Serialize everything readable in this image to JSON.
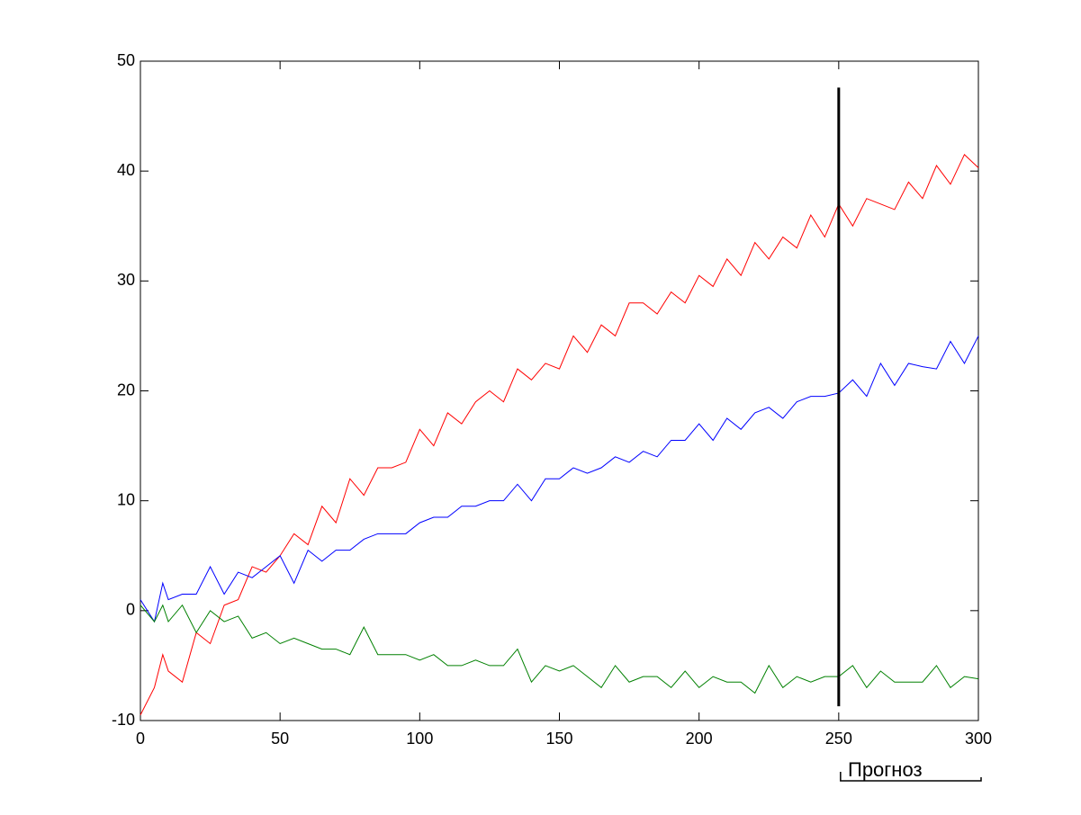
{
  "chart_data": {
    "type": "line",
    "x": [
      0,
      5,
      8,
      10,
      15,
      20,
      25,
      30,
      35,
      40,
      45,
      50,
      55,
      60,
      65,
      70,
      75,
      80,
      85,
      90,
      95,
      100,
      105,
      110,
      115,
      120,
      125,
      130,
      135,
      140,
      145,
      150,
      155,
      160,
      165,
      170,
      175,
      180,
      185,
      190,
      195,
      200,
      205,
      210,
      215,
      220,
      225,
      230,
      235,
      240,
      245,
      250,
      255,
      260,
      265,
      270,
      275,
      280,
      285,
      290,
      295,
      300
    ],
    "series": [
      {
        "color": "#ff0000",
        "values": [
          -9.5,
          -7,
          -4,
          -5.5,
          -6.5,
          -2,
          -3,
          0.5,
          1,
          4,
          3.5,
          5,
          7,
          6,
          9.5,
          8,
          12,
          10.5,
          13,
          13,
          13.5,
          16.5,
          15,
          18,
          17,
          19,
          20,
          19,
          22,
          21,
          22.5,
          22,
          25,
          23.5,
          26,
          25,
          28,
          28,
          27,
          29,
          28,
          30.5,
          29.5,
          32,
          30.5,
          33.5,
          32,
          34,
          33,
          36,
          34,
          37,
          35,
          37.5,
          37,
          36.5,
          39,
          37.5,
          40.5,
          38.8,
          41.5,
          40.3
        ]
      },
      {
        "color": "#0000ff",
        "values": [
          1,
          -1,
          2.5,
          1,
          1.5,
          1.5,
          4,
          1.5,
          3.5,
          3,
          4,
          5,
          2.5,
          5.5,
          4.5,
          5.5,
          5.5,
          6.5,
          7,
          7,
          7,
          8,
          8.5,
          8.5,
          9.5,
          9.5,
          10,
          10,
          11.5,
          10,
          12,
          12,
          13,
          12.5,
          13,
          14,
          13.5,
          14.5,
          14,
          15.5,
          15.5,
          17,
          15.5,
          17.5,
          16.5,
          18,
          18.5,
          17.5,
          19,
          19.5,
          19.5,
          19.8,
          21,
          19.5,
          22.5,
          20.5,
          22.5,
          22.2,
          22,
          24.5,
          22.5,
          25
        ]
      },
      {
        "color": "#008000",
        "values": [
          0.5,
          -1,
          0.5,
          -1,
          0.5,
          -2,
          0,
          -1,
          -0.5,
          -2.5,
          -2,
          -3,
          -2.5,
          -3,
          -3.5,
          -3.5,
          -4,
          -1.5,
          -4,
          -4,
          -4,
          -4.5,
          -4,
          -5,
          -5,
          -4.5,
          -5,
          -5,
          -3.5,
          -6.5,
          -5,
          -5.5,
          -5,
          -6,
          -7,
          -5,
          -6.5,
          -6,
          -6,
          -7,
          -5.5,
          -7,
          -6,
          -6.5,
          -6.5,
          -7.5,
          -5,
          -7,
          -6,
          -6.5,
          -6,
          -6,
          -5,
          -7,
          -5.5,
          -6.5,
          -6.5,
          -6.5,
          -5,
          -7,
          -6,
          -6.2
        ]
      }
    ],
    "xlim": [
      0,
      300
    ],
    "xticks": [
      0,
      50,
      100,
      150,
      200,
      250,
      300
    ],
    "ylim": [
      -10,
      50
    ],
    "yticks": [
      -10,
      0,
      10,
      20,
      30,
      40,
      50
    ],
    "marker_line": {
      "x": 250,
      "y": [
        -8.7,
        47.6
      ],
      "color": "#000000"
    },
    "annotation": "Прогноз"
  }
}
